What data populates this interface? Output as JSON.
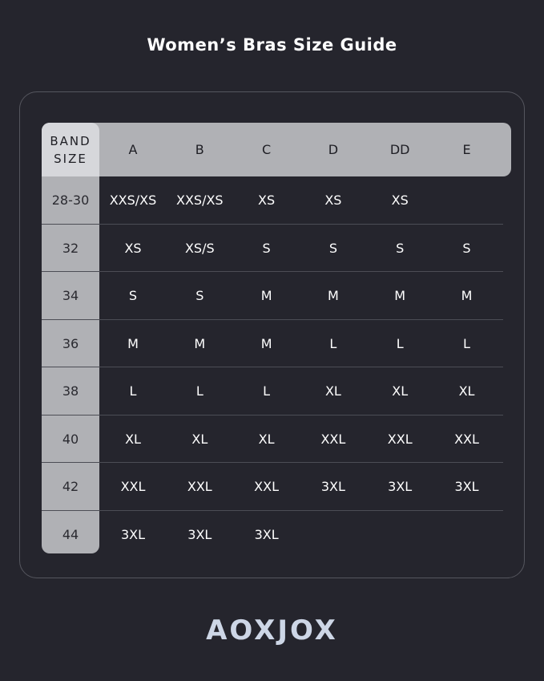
{
  "title": "Women’s Bras Size Guide",
  "table": {
    "band_header": "BAND SIZE",
    "cups": [
      "A",
      "B",
      "C",
      "D",
      "DD",
      "E"
    ],
    "rows": [
      {
        "band": "28-30",
        "sizes": [
          "XXS/XS",
          "XXS/XS",
          "XS",
          "XS",
          "XS",
          ""
        ]
      },
      {
        "band": "32",
        "sizes": [
          "XS",
          "XS/S",
          "S",
          "S",
          "S",
          "S"
        ]
      },
      {
        "band": "34",
        "sizes": [
          "S",
          "S",
          "M",
          "M",
          "M",
          "M"
        ]
      },
      {
        "band": "36",
        "sizes": [
          "M",
          "M",
          "M",
          "L",
          "L",
          "L"
        ]
      },
      {
        "band": "38",
        "sizes": [
          "L",
          "L",
          "L",
          "XL",
          "XL",
          "XL"
        ]
      },
      {
        "band": "40",
        "sizes": [
          "XL",
          "XL",
          "XL",
          "XXL",
          "XXL",
          "XXL"
        ]
      },
      {
        "band": "42",
        "sizes": [
          "XXL",
          "XXL",
          "XXL",
          "3XL",
          "3XL",
          "3XL"
        ]
      },
      {
        "band": "44",
        "sizes": [
          "3XL",
          "3XL",
          "3XL",
          "",
          "",
          ""
        ]
      }
    ]
  },
  "brand": "AOXJOX",
  "colors": {
    "background": "#25252d",
    "header": "#b0b1b5",
    "band_header": "#d6d7db",
    "logo": "#cdd6e6"
  }
}
